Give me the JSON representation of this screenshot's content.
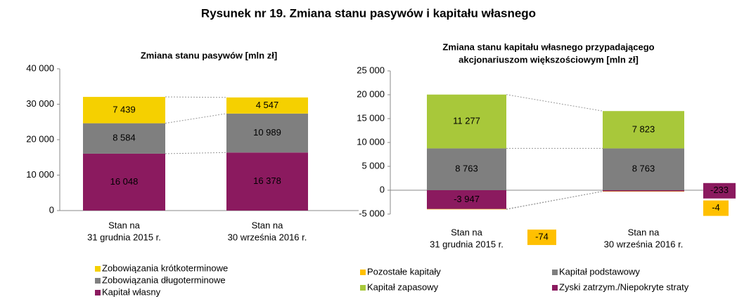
{
  "title": "Rysunek nr 19. Zmiana stanu pasywów i kapitału własnego",
  "chart_data": [
    {
      "type": "bar",
      "stacked": true,
      "title": [
        "Zmiana stanu pasywów [mln zł]"
      ],
      "categories": [
        [
          "Stan na",
          "31 grudnia 2015 r."
        ],
        [
          "Stan na",
          "30 września 2016 r."
        ]
      ],
      "ylim": [
        0,
        40000
      ],
      "yticks": [
        0,
        {
          "value": 10000,
          "label": "10 000"
        },
        {
          "value": 20000,
          "label": "20 000"
        },
        {
          "value": 30000,
          "label": "30 000"
        },
        {
          "value": 40000,
          "label": "40 000"
        }
      ],
      "series": [
        {
          "name": "Kapitał własny",
          "color": "#8b1a5f",
          "label_color": "#ffffff",
          "values": [
            16048,
            16378
          ],
          "value_labels": [
            "16 048",
            "16 378"
          ]
        },
        {
          "name": "Zobowiązania długoterminowe",
          "color": "#7f7f7f",
          "label_color": "#ffffff",
          "values": [
            8584,
            10989
          ],
          "value_labels": [
            "8 584",
            "10 989"
          ]
        },
        {
          "name": "Zobowiązania krótkoterminowe",
          "color": "#f5d000",
          "label_color": "#000000",
          "values": [
            7439,
            4547
          ],
          "value_labels": [
            "7 439",
            "4 547"
          ]
        }
      ]
    },
    {
      "type": "bar",
      "stacked": true,
      "title": [
        "Zmiana stanu kapitału własnego przypadającego",
        "akcjonariuszom większościowym [mln zł]"
      ],
      "categories": [
        [
          "Stan na",
          "31 grudnia 2015 r."
        ],
        [
          "Stan na",
          "30 września 2016 r."
        ]
      ],
      "ylim": [
        -5000,
        25000
      ],
      "yticks": [
        {
          "value": -5000,
          "label": "-5 000"
        },
        0,
        {
          "value": 5000,
          "label": "5 000"
        },
        {
          "value": 10000,
          "label": "10 000"
        },
        {
          "value": 15000,
          "label": "15 000"
        },
        {
          "value": 20000,
          "label": "20 000"
        },
        {
          "value": 25000,
          "label": "25 000"
        }
      ],
      "series": [
        {
          "name": "Kapitał podstawowy",
          "color": "#7f7f7f",
          "label_color": "#ffffff",
          "values": [
            8763,
            8763
          ],
          "value_labels": [
            "8 763",
            "8 763"
          ]
        },
        {
          "name": "Kapitał zapasowy",
          "color": "#a8c83a",
          "label_color": "#000000",
          "values": [
            11277,
            7823
          ],
          "value_labels": [
            "11 277",
            "7 823"
          ]
        },
        {
          "name": "Zyski zatrzym./Niepokryte straty",
          "color": "#8b1a5f",
          "label_color": "#ffffff",
          "values": [
            -3947,
            -233
          ],
          "value_labels": [
            "-3 947",
            "-233"
          ]
        },
        {
          "name": "Pozostałe kapitały",
          "color": "#ffc000",
          "label_color": "#000000",
          "values": [
            -74,
            -4
          ]
        }
      ]
    }
  ]
}
